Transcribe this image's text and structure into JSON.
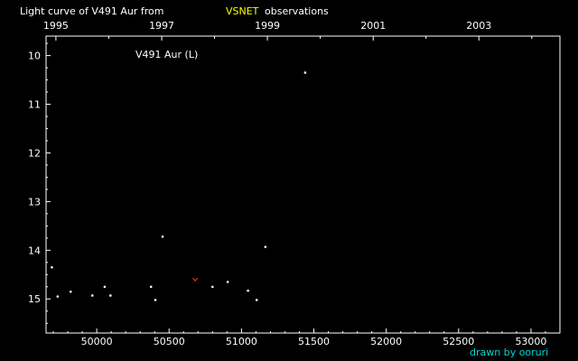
{
  "title": {
    "prefix": "Light curve of V491 Aur from",
    "source": "VSNET",
    "suffix": "observations"
  },
  "credit": "drawn by ooruri",
  "colors": {
    "background": "#000000",
    "frame": "#ffffff",
    "text": "#ffffff",
    "highlight": "#ffff00",
    "credit": "#00d8d8",
    "point": "#ffffcc",
    "upper_limit": "#ff2020"
  },
  "chart_data": {
    "type": "scatter",
    "title": "Light curve of V491 Aur from VSNET observations",
    "annotation": "V491 Aur (L)",
    "xlabel": "",
    "ylabel": "",
    "xlim": [
      49650,
      53200
    ],
    "ylim": [
      9.6,
      15.7
    ],
    "y_inverted": true,
    "grid": false,
    "x_ticks": [
      50000,
      50500,
      51000,
      51500,
      52000,
      52500,
      53000
    ],
    "x_tick_labels": [
      "50000",
      "50500",
      "51000",
      "51500",
      "52000",
      "52500",
      "53000"
    ],
    "y_ticks": [
      10,
      11,
      12,
      13,
      14,
      15
    ],
    "y_tick_labels": [
      "10",
      "11",
      "12",
      "13",
      "14",
      "15"
    ],
    "year_ticks": [
      {
        "label": "1995",
        "jd": 49718
      },
      {
        "label": "1997",
        "jd": 50449
      },
      {
        "label": "1999",
        "jd": 51179
      },
      {
        "label": "2001",
        "jd": 51910
      },
      {
        "label": "2003",
        "jd": 52640
      }
    ],
    "series": [
      {
        "kind": "observation",
        "points": [
          {
            "x": 49690,
            "y": 14.35
          },
          {
            "x": 49730,
            "y": 14.95
          },
          {
            "x": 49820,
            "y": 14.85
          },
          {
            "x": 49970,
            "y": 14.93
          },
          {
            "x": 50055,
            "y": 14.75
          },
          {
            "x": 50095,
            "y": 14.93
          },
          {
            "x": 50375,
            "y": 14.75
          },
          {
            "x": 50405,
            "y": 15.02
          },
          {
            "x": 50455,
            "y": 13.72
          },
          {
            "x": 50800,
            "y": 14.75
          },
          {
            "x": 50905,
            "y": 14.65
          },
          {
            "x": 51045,
            "y": 14.83
          },
          {
            "x": 51105,
            "y": 15.02
          },
          {
            "x": 51165,
            "y": 13.93
          },
          {
            "x": 51440,
            "y": 10.35
          }
        ]
      },
      {
        "kind": "upper-limit",
        "points": [
          {
            "x": 50680,
            "y": 14.6
          }
        ]
      }
    ]
  }
}
